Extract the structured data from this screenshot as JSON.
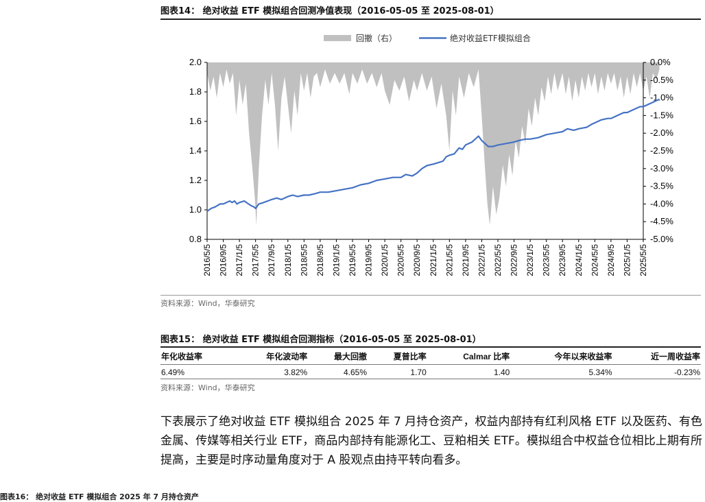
{
  "figure14": {
    "title": "图表14：  绝对收益 ETF 模拟组合回测净值表现（2016-05-05 至 2025-08-01）",
    "source": "资料来源：Wind，华泰研究"
  },
  "chart_data": {
    "type": "line+area",
    "title": "绝对收益 ETF 模拟组合回测净值表现（2016-05-05 至 2025-08-01）",
    "legend": [
      "回撤（右）",
      "绝对收益ETF模拟组合"
    ],
    "legend_position": "top",
    "x_ticks": [
      "2016/5/5",
      "2016/9/5",
      "2017/1/5",
      "2017/5/5",
      "2017/9/5",
      "2018/1/5",
      "2018/5/5",
      "2018/9/5",
      "2019/1/5",
      "2019/5/5",
      "2019/9/5",
      "2020/1/5",
      "2020/5/5",
      "2020/9/5",
      "2021/1/5",
      "2021/5/5",
      "2021/9/5",
      "2022/1/5",
      "2022/5/5",
      "2022/9/5",
      "2023/1/5",
      "2023/5/5",
      "2023/9/5",
      "2024/1/5",
      "2024/5/5",
      "2024/9/5",
      "2025/1/5",
      "2025/5/5"
    ],
    "y_left": {
      "range": [
        0.8,
        2.0
      ],
      "ticks": [
        "0.8",
        "1.0",
        "1.2",
        "1.4",
        "1.6",
        "1.8",
        "2.0"
      ]
    },
    "y_right": {
      "range": [
        -5.0,
        0.0
      ],
      "ticks": [
        "0.0%",
        "-0.5%",
        "-1.0%",
        "-1.5%",
        "-2.0%",
        "-2.5%",
        "-3.0%",
        "-3.5%",
        "-4.0%",
        "-4.5%",
        "-5.0%"
      ]
    },
    "nav_series": {
      "name": "绝对收益ETF模拟组合",
      "color": "#4472C4",
      "points": [
        [
          0.0,
          0.99
        ],
        [
          0.25,
          1.01
        ],
        [
          0.5,
          1.02
        ],
        [
          0.8,
          1.04
        ],
        [
          1.0,
          1.04
        ],
        [
          1.2,
          1.05
        ],
        [
          1.4,
          1.06
        ],
        [
          1.55,
          1.05
        ],
        [
          1.7,
          1.06
        ],
        [
          1.85,
          1.04
        ],
        [
          2.0,
          1.05
        ],
        [
          2.3,
          1.06
        ],
        [
          2.7,
          1.03
        ],
        [
          2.9,
          1.02
        ],
        [
          3.0,
          1.01
        ],
        [
          3.2,
          1.04
        ],
        [
          3.5,
          1.05
        ],
        [
          4.0,
          1.07
        ],
        [
          4.3,
          1.08
        ],
        [
          4.6,
          1.07
        ],
        [
          5.0,
          1.09
        ],
        [
          5.3,
          1.1
        ],
        [
          5.6,
          1.09
        ],
        [
          6.0,
          1.1
        ],
        [
          6.3,
          1.1
        ],
        [
          6.7,
          1.11
        ],
        [
          7.0,
          1.12
        ],
        [
          7.5,
          1.12
        ],
        [
          8.0,
          1.13
        ],
        [
          8.5,
          1.14
        ],
        [
          9.0,
          1.15
        ],
        [
          9.5,
          1.17
        ],
        [
          10.0,
          1.18
        ],
        [
          10.5,
          1.2
        ],
        [
          11.0,
          1.21
        ],
        [
          11.5,
          1.22
        ],
        [
          12.0,
          1.22
        ],
        [
          12.3,
          1.24
        ],
        [
          12.7,
          1.23
        ],
        [
          13.0,
          1.25
        ],
        [
          13.3,
          1.28
        ],
        [
          13.6,
          1.3
        ],
        [
          14.0,
          1.31
        ],
        [
          14.3,
          1.32
        ],
        [
          14.6,
          1.33
        ],
        [
          14.8,
          1.36
        ],
        [
          15.0,
          1.37
        ],
        [
          15.3,
          1.38
        ],
        [
          15.6,
          1.42
        ],
        [
          15.8,
          1.41
        ],
        [
          16.0,
          1.44
        ],
        [
          16.4,
          1.46
        ],
        [
          16.8,
          1.5
        ],
        [
          17.0,
          1.47
        ],
        [
          17.2,
          1.45
        ],
        [
          17.4,
          1.43
        ],
        [
          17.7,
          1.43
        ],
        [
          18.0,
          1.44
        ],
        [
          18.5,
          1.45
        ],
        [
          19.0,
          1.46
        ],
        [
          19.3,
          1.47
        ],
        [
          19.7,
          1.48
        ],
        [
          20.0,
          1.48
        ],
        [
          20.5,
          1.49
        ],
        [
          21.0,
          1.51
        ],
        [
          21.5,
          1.52
        ],
        [
          22.0,
          1.53
        ],
        [
          22.3,
          1.55
        ],
        [
          22.7,
          1.54
        ],
        [
          23.0,
          1.55
        ],
        [
          23.5,
          1.56
        ],
        [
          23.8,
          1.58
        ],
        [
          24.0,
          1.59
        ],
        [
          24.4,
          1.61
        ],
        [
          24.8,
          1.62
        ],
        [
          25.0,
          1.62
        ],
        [
          25.4,
          1.64
        ],
        [
          25.8,
          1.66
        ],
        [
          26.0,
          1.66
        ],
        [
          26.4,
          1.68
        ],
        [
          26.8,
          1.7
        ],
        [
          27.0,
          1.7
        ],
        [
          27.4,
          1.72
        ],
        [
          27.8,
          1.74
        ],
        [
          28.0,
          1.75
        ]
      ]
    },
    "drawdown_series": {
      "name": "回撤（右）",
      "color": "#C0C0C0",
      "points": [
        [
          0.0,
          -0.3
        ],
        [
          0.2,
          -0.8
        ],
        [
          0.4,
          -0.4
        ],
        [
          0.6,
          -1.0
        ],
        [
          0.8,
          -0.3
        ],
        [
          1.0,
          -0.7
        ],
        [
          1.2,
          -0.2
        ],
        [
          1.4,
          -0.6
        ],
        [
          1.6,
          -0.3
        ],
        [
          1.8,
          -1.5
        ],
        [
          2.0,
          -0.5
        ],
        [
          2.2,
          -1.2
        ],
        [
          2.4,
          -0.6
        ],
        [
          2.6,
          -2.0
        ],
        [
          2.8,
          -3.0
        ],
        [
          2.95,
          -3.8
        ],
        [
          3.05,
          -4.6
        ],
        [
          3.2,
          -3.0
        ],
        [
          3.4,
          -1.5
        ],
        [
          3.6,
          -0.5
        ],
        [
          3.8,
          -1.2
        ],
        [
          4.0,
          -0.3
        ],
        [
          4.2,
          -1.2
        ],
        [
          4.4,
          -2.5
        ],
        [
          4.6,
          -1.0
        ],
        [
          4.8,
          -0.4
        ],
        [
          5.0,
          -1.2
        ],
        [
          5.2,
          -2.0
        ],
        [
          5.4,
          -0.8
        ],
        [
          5.6,
          -1.5
        ],
        [
          5.8,
          -0.3
        ],
        [
          6.0,
          -0.8
        ],
        [
          6.2,
          -0.3
        ],
        [
          6.4,
          -1.0
        ],
        [
          6.6,
          -0.4
        ],
        [
          6.8,
          -0.3
        ],
        [
          7.0,
          -0.7
        ],
        [
          7.3,
          -0.2
        ],
        [
          7.6,
          -0.6
        ],
        [
          7.9,
          -0.3
        ],
        [
          8.2,
          -0.6
        ],
        [
          8.5,
          -0.3
        ],
        [
          8.8,
          -0.9
        ],
        [
          9.0,
          -0.3
        ],
        [
          9.3,
          -0.6
        ],
        [
          9.6,
          -0.2
        ],
        [
          9.9,
          -0.6
        ],
        [
          10.2,
          -0.3
        ],
        [
          10.5,
          -0.7
        ],
        [
          10.8,
          -0.3
        ],
        [
          11.0,
          -0.8
        ],
        [
          11.3,
          -1.2
        ],
        [
          11.6,
          -0.5
        ],
        [
          11.9,
          -0.8
        ],
        [
          12.2,
          -0.4
        ],
        [
          12.5,
          -1.1
        ],
        [
          12.8,
          -0.5
        ],
        [
          13.0,
          -0.8
        ],
        [
          13.3,
          -0.3
        ],
        [
          13.6,
          -0.8
        ],
        [
          13.9,
          -0.4
        ],
        [
          14.2,
          -1.3
        ],
        [
          14.5,
          -0.6
        ],
        [
          14.8,
          -1.5
        ],
        [
          15.0,
          -2.5
        ],
        [
          15.2,
          -0.8
        ],
        [
          15.4,
          -1.5
        ],
        [
          15.6,
          -0.4
        ],
        [
          15.9,
          -1.0
        ],
        [
          16.2,
          -0.3
        ],
        [
          16.5,
          -0.7
        ],
        [
          16.8,
          -0.2
        ],
        [
          17.0,
          -1.5
        ],
        [
          17.2,
          -3.0
        ],
        [
          17.35,
          -4.0
        ],
        [
          17.5,
          -4.6
        ],
        [
          17.7,
          -3.5
        ],
        [
          17.9,
          -4.3
        ],
        [
          18.1,
          -3.8
        ],
        [
          18.3,
          -2.9
        ],
        [
          18.5,
          -3.5
        ],
        [
          18.7,
          -2.6
        ],
        [
          18.9,
          -3.2
        ],
        [
          19.1,
          -2.2
        ],
        [
          19.3,
          -2.7
        ],
        [
          19.5,
          -1.8
        ],
        [
          19.7,
          -2.3
        ],
        [
          19.9,
          -1.3
        ],
        [
          20.1,
          -1.8
        ],
        [
          20.3,
          -1.0
        ],
        [
          20.5,
          -1.5
        ],
        [
          20.7,
          -0.7
        ],
        [
          20.9,
          -1.1
        ],
        [
          21.1,
          -0.4
        ],
        [
          21.3,
          -0.9
        ],
        [
          21.5,
          -0.3
        ],
        [
          21.7,
          -0.8
        ],
        [
          22.0,
          -0.3
        ],
        [
          22.2,
          -0.9
        ],
        [
          22.4,
          -0.4
        ],
        [
          22.6,
          -1.1
        ],
        [
          22.8,
          -0.5
        ],
        [
          23.0,
          -1.0
        ],
        [
          23.2,
          -0.4
        ],
        [
          23.4,
          -0.8
        ],
        [
          23.6,
          -0.3
        ],
        [
          23.8,
          -0.7
        ],
        [
          24.0,
          -0.3
        ],
        [
          24.2,
          -0.9
        ],
        [
          24.4,
          -0.4
        ],
        [
          24.6,
          -0.8
        ],
        [
          24.8,
          -0.3
        ],
        [
          25.0,
          -0.6
        ],
        [
          25.2,
          -0.3
        ],
        [
          25.4,
          -0.8
        ],
        [
          25.6,
          -0.4
        ],
        [
          25.8,
          -1.0
        ],
        [
          26.0,
          -0.4
        ],
        [
          26.2,
          -0.9
        ],
        [
          26.4,
          -0.3
        ],
        [
          26.6,
          -0.7
        ],
        [
          26.8,
          -0.3
        ],
        [
          27.0,
          -0.8
        ],
        [
          27.2,
          -0.4
        ],
        [
          27.4,
          -1.0
        ],
        [
          27.6,
          -0.3
        ],
        [
          27.8,
          -0.5
        ],
        [
          28.0,
          -0.2
        ]
      ]
    }
  },
  "figure15": {
    "title": "图表15：  绝对收益 ETF 模拟组合回测指标（2016-05-05 至 2025-08-01）",
    "headers": [
      "年化收益率",
      "年化波动率",
      "最大回撤",
      "夏普比率",
      "Calmar 比率",
      "今年以来收益率",
      "近一周收益率"
    ],
    "row": [
      "6.49%",
      "3.82%",
      "4.65%",
      "1.70",
      "1.40",
      "5.34%",
      "-0.23%"
    ],
    "source": "资料来源：Wind，华泰研究"
  },
  "paragraph": "下表展示了绝对收益 ETF 模拟组合 2025 年 7 月持仓资产，权益内部持有红利风格 ETF 以及医药、有色金属、传媒等相关行业 ETF，商品内部持有能源化工、豆粕相关 ETF。模拟组合中权益仓位相比上期有所提高，主要是时序动量角度对于 A 股观点由持平转向看多。",
  "bottom_cut": "图表16：  绝对收益 ETF 模拟组合 2025 年 7 月持仓资产"
}
